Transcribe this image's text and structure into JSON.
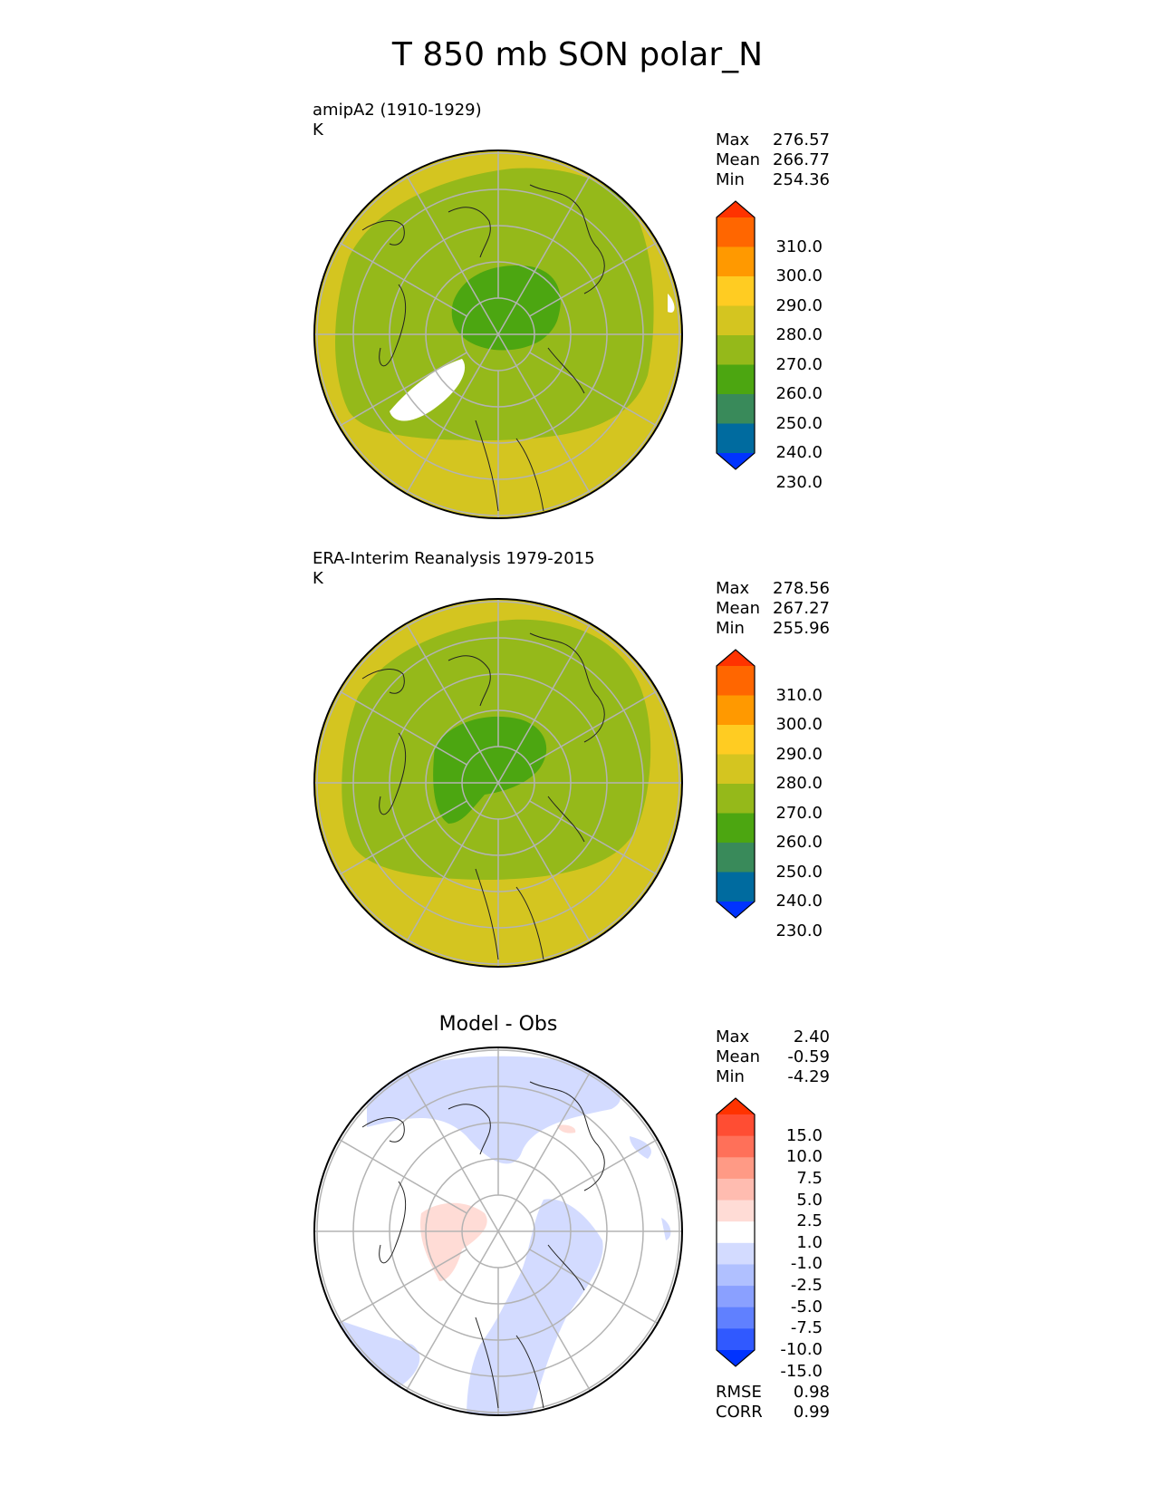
{
  "title": "T 850 mb SON polar_N",
  "panels": [
    {
      "id": "model",
      "title": "amipA2 (1910-1929)",
      "units": "K",
      "stats": [
        {
          "label": "Max",
          "value": "276.57"
        },
        {
          "label": "Mean",
          "value": "266.77"
        },
        {
          "label": "Min",
          "value": "254.36"
        }
      ],
      "colorbar": {
        "levels": [
          "310.0",
          "300.0",
          "290.0",
          "280.0",
          "270.0",
          "260.0",
          "250.0",
          "240.0",
          "230.0"
        ],
        "colors": [
          "#ff3300",
          "#ff6600",
          "#ff9900",
          "#ffcc22",
          "#d4c520",
          "#95b91a",
          "#4ca611",
          "#398a5a",
          "#006b9f",
          "#0033ff"
        ]
      }
    },
    {
      "id": "obs",
      "title": "ERA-Interim Reanalysis 1979-2015",
      "units": "K",
      "stats": [
        {
          "label": "Max",
          "value": "278.56"
        },
        {
          "label": "Mean",
          "value": "267.27"
        },
        {
          "label": "Min",
          "value": "255.96"
        }
      ],
      "colorbar": {
        "levels": [
          "310.0",
          "300.0",
          "290.0",
          "280.0",
          "270.0",
          "260.0",
          "250.0",
          "240.0",
          "230.0"
        ],
        "colors": [
          "#ff3300",
          "#ff6600",
          "#ff9900",
          "#ffcc22",
          "#d4c520",
          "#95b91a",
          "#4ca611",
          "#398a5a",
          "#006b9f",
          "#0033ff"
        ]
      }
    },
    {
      "id": "diff",
      "title": "Model - Obs",
      "units": "",
      "stats": [
        {
          "label": "Max",
          "value": "2.40"
        },
        {
          "label": "Mean",
          "value": "-0.59"
        },
        {
          "label": "Min",
          "value": "-4.29"
        }
      ],
      "extra_stats": [
        {
          "label": "RMSE",
          "value": "0.98"
        },
        {
          "label": "CORR",
          "value": "0.99"
        }
      ],
      "colorbar": {
        "levels": [
          "15.0",
          "10.0",
          "7.5",
          "5.0",
          "2.5",
          "1.0",
          "-1.0",
          "-2.5",
          "-5.0",
          "-7.5",
          "-10.0",
          "-15.0"
        ],
        "colors": [
          "#ff3300",
          "#ff4d33",
          "#ff7059",
          "#ff9a85",
          "#ffbcb0",
          "#ffdcd6",
          "#ffffff",
          "#d3dbff",
          "#b0c0ff",
          "#8aa0ff",
          "#6080ff",
          "#3059ff",
          "#0033ff"
        ]
      }
    }
  ],
  "chart_data": [
    {
      "type": "heatmap",
      "projection": "north polar stereographic",
      "title": "amipA2 (1910-1929)",
      "units": "K",
      "max": 276.57,
      "mean": 266.77,
      "min": 254.36
    },
    {
      "type": "heatmap",
      "projection": "north polar stereographic",
      "title": "ERA-Interim Reanalysis 1979-2015",
      "units": "K",
      "max": 278.56,
      "mean": 267.27,
      "min": 255.96
    },
    {
      "type": "heatmap",
      "projection": "north polar stereographic",
      "title": "Model - Obs",
      "max": 2.4,
      "mean": -0.59,
      "min": -4.29,
      "rmse": 0.98,
      "corr": 0.99
    }
  ]
}
